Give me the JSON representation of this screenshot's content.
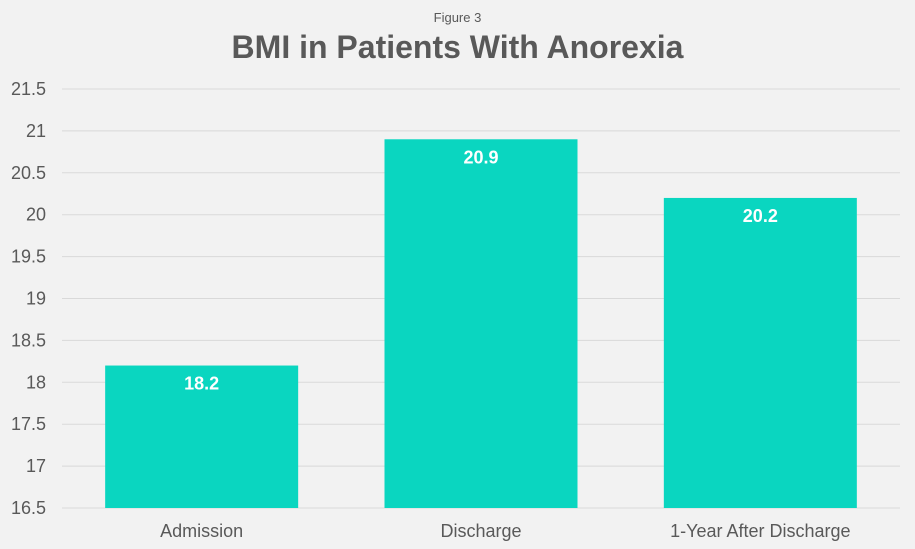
{
  "figure_label": "Figure 3",
  "chart_data": {
    "type": "bar",
    "title": "BMI in Patients With Anorexia",
    "categories": [
      "Admission",
      "Discharge",
      "1-Year After Discharge"
    ],
    "values": [
      18.2,
      20.9,
      20.2
    ],
    "data_labels": [
      "18.2",
      "20.9",
      "20.2"
    ],
    "ylim": [
      16.5,
      21.5
    ],
    "y_ticks": [
      16.5,
      17,
      17.5,
      18,
      18.5,
      19,
      19.5,
      20,
      20.5,
      21,
      21.5
    ],
    "y_tick_labels": [
      "16.5",
      "17",
      "17.5",
      "18",
      "18.5",
      "19",
      "19.5",
      "20",
      "20.5",
      "21",
      "21.5"
    ],
    "xlabel": "",
    "ylabel": "",
    "grid": true,
    "legend": "none",
    "colors": {
      "bar": "#0ad6c0",
      "background": "#f2f2f2",
      "grid": "#d9d9d9",
      "text": "#595959",
      "data_label": "#ffffff"
    }
  }
}
